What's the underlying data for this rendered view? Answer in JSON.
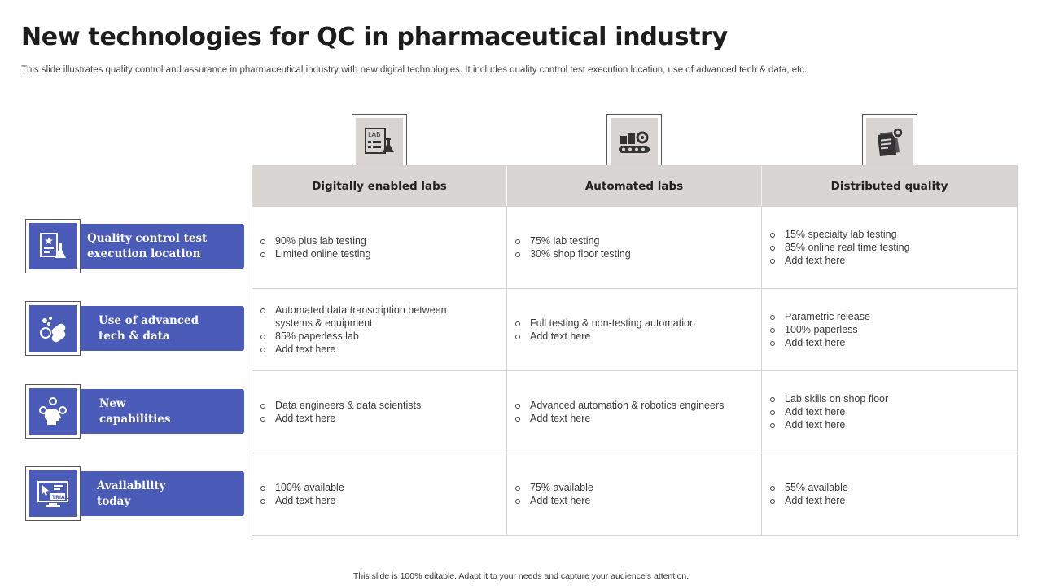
{
  "header": {
    "title": "New technologies for QC in pharmaceutical industry",
    "subtitle": "This slide illustrates quality control and assurance in pharmaceutical industry with new digital technologies. It includes quality control test execution location, use of advanced tech & data, etc."
  },
  "columns": [
    {
      "label": "Digitally enabled labs",
      "icon": "lab-report-flask-icon"
    },
    {
      "label": "Automated labs",
      "icon": "conveyor-belt-icon"
    },
    {
      "label": "Distributed quality",
      "icon": "certified-documents-icon"
    }
  ],
  "rows": [
    {
      "label_line1": "Quality control test",
      "label_line2": "execution location",
      "icon": "lab-test-clipboard-icon"
    },
    {
      "label_line1": "Use of advanced",
      "label_line2": "tech & data",
      "icon": "capsule-pills-icon"
    },
    {
      "label_line1": "New",
      "label_line2": "capabilities",
      "icon": "head-gear-icon"
    },
    {
      "label_line1": "Availability",
      "label_line2": "today",
      "icon": "trial-monitor-icon"
    }
  ],
  "cells": [
    [
      [
        "90% plus lab testing",
        "Limited online testing"
      ],
      [
        "75% lab testing",
        "30% shop floor testing"
      ],
      [
        "15% specialty lab testing",
        "85% online real time testing",
        "Add text here"
      ]
    ],
    [
      [
        "Automated data transcription between systems & equipment",
        "85% paperless lab",
        "Add text here"
      ],
      [
        "Full testing & non-testing automation",
        "Add text here"
      ],
      [
        "Parametric release",
        "100% paperless",
        "Add text here"
      ]
    ],
    [
      [
        "Data engineers & data scientists",
        "Add text here"
      ],
      [
        "Advanced automation & robotics engineers",
        "Add text here"
      ],
      [
        "Lab skills on shop floor",
        "Add text here",
        "Add text here"
      ]
    ],
    [
      [
        "100% available",
        "Add text here"
      ],
      [
        "75% available",
        "Add text here"
      ],
      [
        "55% available",
        "Add text here"
      ]
    ]
  ],
  "footer": {
    "text": "This slide is 100% editable. Adapt it to your needs and capture your audience's attention."
  },
  "colors": {
    "accent": "#4a5bb8",
    "header_fill": "#d8d5d2"
  }
}
